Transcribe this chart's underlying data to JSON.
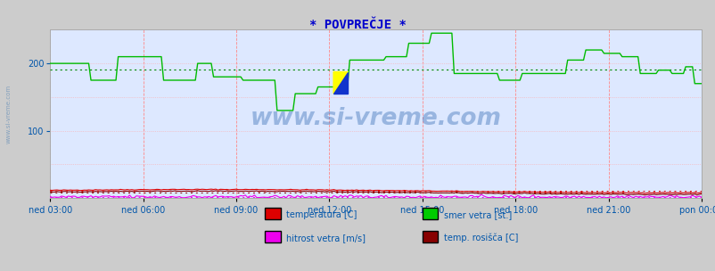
{
  "title": "* POVPREČJE *",
  "title_color": "#0000cc",
  "title_fontsize": 10,
  "bg_color": "#cccccc",
  "plot_bg_color": "#dde8ff",
  "grid_v_color": "#ff8888",
  "grid_h_color": "#ffaaaa",
  "tick_color": "#0055aa",
  "watermark": "www.si-vreme.com",
  "watermark_color": "#4477bb",
  "watermark_alpha": 0.45,
  "watermark_fontsize": 19,
  "ylim": [
    0,
    250
  ],
  "yticks": [
    100,
    200
  ],
  "x_labels": [
    "ned 03:00",
    "ned 06:00",
    "ned 09:00",
    "ned 12:00",
    "ned 15:00",
    "ned 18:00",
    "ned 21:00",
    "pon 00:00"
  ],
  "n_points": 288,
  "legend_items": [
    {
      "label": "temperatura [C]",
      "color": "#dd0000"
    },
    {
      "label": "smer vetra [st.]",
      "color": "#00cc00"
    },
    {
      "label": "hitrost vetra [m/s]",
      "color": "#ee00ee"
    },
    {
      "label": "temp. rosišča [C]",
      "color": "#880000"
    }
  ],
  "left_text": "www.si-vreme.com",
  "left_text_color": "#7799bb",
  "wind_dir_color": "#00bb00",
  "wind_dir_avg_color": "#008800",
  "temp_color": "#dd0000",
  "wind_speed_color": "#ee00ee",
  "dew_color": "#880000"
}
